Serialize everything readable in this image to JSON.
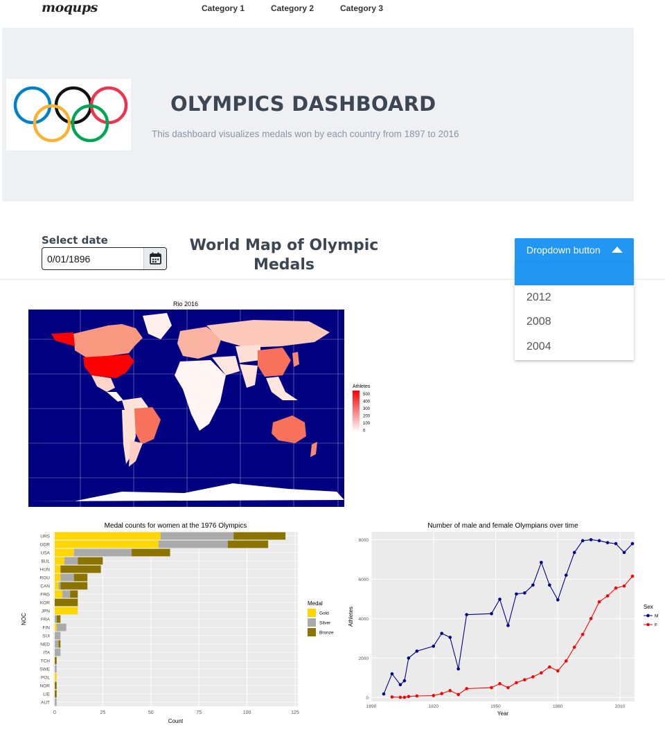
{
  "nav": {
    "logo": "moqups",
    "items": [
      "Category 1",
      "Category 2",
      "Category 3"
    ]
  },
  "hero": {
    "title": "OLYMPICS DASHBOARD",
    "subtitle": "This dashboard visualizes medals won by each country from 1897 to 2016"
  },
  "controls": {
    "date_label": "Select date",
    "date_value": "0/01/1896",
    "section_title": "World Map of Olympic Medals",
    "dropdown_label": "Dropdown button",
    "dropdown_options": [
      "2012",
      "2008",
      "2004"
    ]
  },
  "colors": {
    "accent": "#2196f3",
    "map_ocean": "#000080",
    "gold": "#ffd700",
    "silver": "#aaaaaa",
    "bronze": "#8b7500"
  },
  "chart_data": [
    {
      "type": "heatmap",
      "title": "Rio 2016",
      "legend_title": "Athletes",
      "legend_ticks": [
        500,
        400,
        300,
        200,
        100,
        0
      ],
      "legend_placement": "right"
    },
    {
      "type": "bar",
      "title": "Medal counts for women at the 1976 Olympics",
      "xlabel": "Count",
      "ylabel": "NOC",
      "xlim": [
        0,
        125
      ],
      "xticks": [
        0,
        25,
        50,
        75,
        100,
        125
      ],
      "categories": [
        "URS",
        "GDR",
        "USA",
        "BUL",
        "HUN",
        "ROU",
        "CAN",
        "FRG",
        "KOR",
        "JPN",
        "FRA",
        "FIN",
        "SUI",
        "NED",
        "ITA",
        "TCH",
        "SWE",
        "POL",
        "NOR",
        "LIE",
        "AUT"
      ],
      "legend_title": "Medal",
      "series": [
        {
          "name": "Gold",
          "color": "#ffd700",
          "values": [
            55,
            54,
            10,
            5,
            3,
            3,
            2,
            4,
            0,
            12,
            0,
            1,
            0,
            0,
            0,
            0,
            0,
            1,
            0,
            0,
            0
          ]
        },
        {
          "name": "Silver",
          "color": "#aaaaaa",
          "values": [
            38,
            36,
            30,
            7,
            0,
            7,
            1,
            4,
            0,
            0,
            1,
            5,
            3,
            2,
            3,
            0,
            1,
            0,
            0,
            0,
            1
          ]
        },
        {
          "name": "Bronze",
          "color": "#8b7500",
          "values": [
            27,
            21,
            20,
            13,
            21,
            7,
            14,
            4,
            12,
            0,
            2,
            0,
            0,
            1,
            0,
            1,
            0,
            0,
            1,
            1,
            0
          ]
        }
      ],
      "stacked": true,
      "orientation": "horizontal",
      "legend_placement": "right"
    },
    {
      "type": "line",
      "title": "Number of male and female Olympians over time",
      "xlabel": "Year",
      "ylabel": "Athletes",
      "xlim": [
        1890,
        2017
      ],
      "ylim": [
        -200,
        8400
      ],
      "xticks": [
        1890,
        1920,
        1950,
        1980,
        2010
      ],
      "yticks": [
        0,
        2000,
        4000,
        6000,
        8000
      ],
      "legend_title": "Sex",
      "legend_placement": "right",
      "series": [
        {
          "name": "M",
          "color": "#00008b",
          "x": [
            1896,
            1900,
            1904,
            1906,
            1908,
            1912,
            1920,
            1924,
            1928,
            1932,
            1936,
            1948,
            1952,
            1956,
            1960,
            1964,
            1968,
            1972,
            1976,
            1980,
            1984,
            1988,
            1992,
            1996,
            2000,
            2004,
            2008,
            2012,
            2016
          ],
          "y": [
            180,
            1200,
            650,
            850,
            2000,
            2350,
            2600,
            3250,
            3050,
            1450,
            4200,
            4250,
            4980,
            3650,
            5250,
            5300,
            5700,
            6850,
            5700,
            4950,
            6200,
            7350,
            7950,
            8000,
            7950,
            7850,
            7800,
            7350,
            7800
          ]
        },
        {
          "name": "F",
          "color": "#ff0000",
          "x": [
            1900,
            1904,
            1906,
            1908,
            1912,
            1920,
            1924,
            1928,
            1932,
            1936,
            1948,
            1952,
            1956,
            1960,
            1964,
            1968,
            1972,
            1976,
            1980,
            1984,
            1988,
            1992,
            1996,
            2000,
            2004,
            2008,
            2012,
            2016
          ],
          "y": [
            30,
            10,
            10,
            50,
            80,
            100,
            200,
            350,
            150,
            450,
            500,
            700,
            500,
            750,
            900,
            1050,
            1250,
            1550,
            1350,
            1850,
            2550,
            3200,
            4000,
            4850,
            5150,
            5550,
            5650,
            6150
          ]
        }
      ]
    }
  ]
}
